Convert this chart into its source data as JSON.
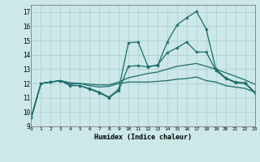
{
  "xlabel": "Humidex (Indice chaleur)",
  "ylabel": "",
  "bg_color": "#cce8e8",
  "grid_color": "#b0d0d0",
  "line_color": "#1a6b6b",
  "xlim": [
    0,
    23
  ],
  "ylim": [
    9,
    17.5
  ],
  "yticks": [
    9,
    10,
    11,
    12,
    13,
    14,
    15,
    16,
    17
  ],
  "xticks": [
    0,
    1,
    2,
    3,
    4,
    5,
    6,
    7,
    8,
    9,
    10,
    11,
    12,
    13,
    14,
    15,
    16,
    17,
    18,
    19,
    20,
    21,
    22,
    23
  ],
  "line1_x": [
    0,
    1,
    2,
    3,
    4,
    5,
    6,
    7,
    8,
    9,
    10,
    11,
    12,
    13,
    14,
    15,
    16,
    17,
    18,
    19,
    20,
    21,
    22,
    23
  ],
  "line1_y": [
    9.6,
    12.0,
    12.1,
    12.2,
    11.9,
    11.85,
    11.65,
    11.4,
    11.05,
    11.6,
    14.85,
    14.9,
    13.2,
    13.25,
    14.9,
    16.1,
    16.6,
    17.05,
    15.8,
    13.0,
    12.4,
    12.1,
    12.05,
    11.4
  ],
  "line2_x": [
    0,
    1,
    2,
    3,
    4,
    5,
    6,
    7,
    8,
    9,
    10,
    11,
    12,
    13,
    14,
    15,
    16,
    17,
    18,
    19,
    20,
    21,
    22,
    23
  ],
  "line2_y": [
    9.6,
    12.0,
    12.1,
    12.2,
    11.85,
    11.85,
    11.6,
    11.35,
    11.0,
    11.5,
    13.2,
    13.25,
    13.15,
    13.3,
    14.15,
    14.5,
    14.9,
    14.2,
    14.2,
    12.9,
    12.35,
    12.05,
    12.0,
    11.35
  ],
  "line3_x": [
    0,
    1,
    2,
    3,
    4,
    5,
    6,
    7,
    8,
    9,
    10,
    11,
    12,
    13,
    14,
    15,
    16,
    17,
    18,
    19,
    20,
    21,
    22,
    23
  ],
  "line3_y": [
    9.6,
    12.0,
    12.1,
    12.2,
    12.05,
    12.0,
    11.85,
    11.75,
    11.8,
    12.0,
    12.1,
    12.1,
    12.1,
    12.15,
    12.2,
    12.3,
    12.35,
    12.45,
    12.2,
    12.1,
    11.85,
    11.75,
    11.65,
    11.4
  ],
  "line4_x": [
    0,
    1,
    2,
    3,
    4,
    5,
    6,
    7,
    8,
    9,
    10,
    11,
    12,
    13,
    14,
    15,
    16,
    17,
    18,
    19,
    20,
    21,
    22,
    23
  ],
  "line4_y": [
    9.6,
    12.0,
    12.1,
    12.2,
    12.0,
    12.0,
    11.95,
    11.9,
    11.9,
    12.1,
    12.4,
    12.55,
    12.7,
    12.8,
    13.0,
    13.2,
    13.3,
    13.4,
    13.2,
    13.0,
    12.75,
    12.5,
    12.25,
    11.95
  ]
}
